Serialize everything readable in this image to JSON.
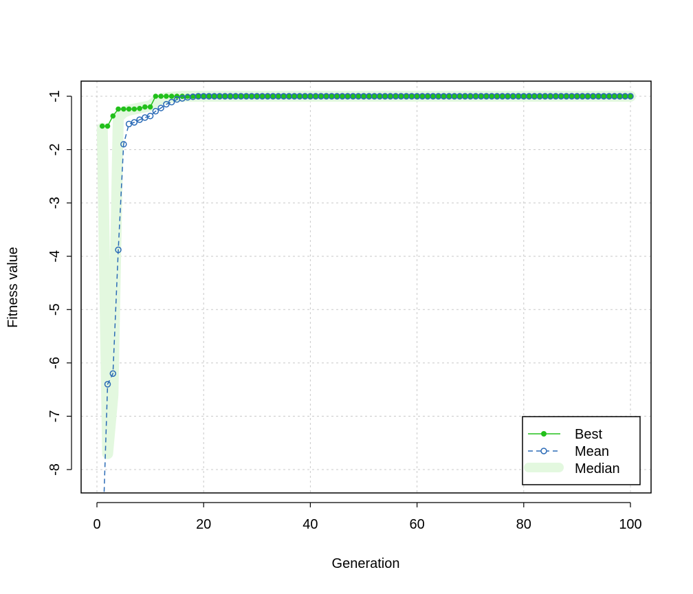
{
  "chart_data": {
    "type": "line",
    "title": "",
    "xlabel": "Generation",
    "ylabel": "Fitness value",
    "xlim": [
      0,
      100
    ],
    "ylim": [
      -8.3,
      -0.85
    ],
    "xticks": [
      0,
      20,
      40,
      60,
      80,
      100
    ],
    "yticks": [
      -1,
      -2,
      -3,
      -4,
      -5,
      -6,
      -7,
      -8
    ],
    "grid": true,
    "legend_position": "bottom-right",
    "colors": {
      "best": "#22c01b",
      "mean": "#2a6ab6",
      "median_fill": "#e3f8df"
    },
    "x": [
      1,
      2,
      3,
      4,
      5,
      6,
      7,
      8,
      9,
      10,
      11,
      12,
      13,
      14,
      15,
      16,
      17,
      18,
      19,
      20,
      21,
      22,
      23,
      24,
      25,
      26,
      27,
      28,
      29,
      30,
      31,
      32,
      33,
      34,
      35,
      36,
      37,
      38,
      39,
      40,
      41,
      42,
      43,
      44,
      45,
      46,
      47,
      48,
      49,
      50,
      51,
      52,
      53,
      54,
      55,
      56,
      57,
      58,
      59,
      60,
      61,
      62,
      63,
      64,
      65,
      66,
      67,
      68,
      69,
      70,
      71,
      72,
      73,
      74,
      75,
      76,
      77,
      78,
      79,
      80,
      81,
      82,
      83,
      84,
      85,
      86,
      87,
      88,
      89,
      90,
      91,
      92,
      93,
      94,
      95,
      96,
      97,
      98,
      99,
      100
    ],
    "series": [
      {
        "name": "Best",
        "values": [
          -1.56,
          -1.56,
          -1.37,
          -1.24,
          -1.24,
          -1.24,
          -1.24,
          -1.23,
          -1.2,
          -1.2,
          -1.0,
          -1.0,
          -1.0,
          -1.0,
          -1.0,
          -1.0,
          -1.0,
          -1.0,
          -1.0,
          -1.0,
          -1.0,
          -1.0,
          -1.0,
          -1.0,
          -1.0,
          -1.0,
          -1.0,
          -1.0,
          -1.0,
          -1.0,
          -1.0,
          -1.0,
          -1.0,
          -1.0,
          -1.0,
          -1.0,
          -1.0,
          -1.0,
          -1.0,
          -1.0,
          -1.0,
          -1.0,
          -1.0,
          -1.0,
          -1.0,
          -1.0,
          -1.0,
          -1.0,
          -1.0,
          -1.0,
          -1.0,
          -1.0,
          -1.0,
          -1.0,
          -1.0,
          -1.0,
          -1.0,
          -1.0,
          -1.0,
          -1.0,
          -1.0,
          -1.0,
          -1.0,
          -1.0,
          -1.0,
          -1.0,
          -1.0,
          -1.0,
          -1.0,
          -1.0,
          -1.0,
          -1.0,
          -1.0,
          -1.0,
          -1.0,
          -1.0,
          -1.0,
          -1.0,
          -1.0,
          -1.0,
          -1.0,
          -1.0,
          -1.0,
          -1.0,
          -1.0,
          -1.0,
          -1.0,
          -1.0,
          -1.0,
          -1.0,
          -1.0,
          -1.0,
          -1.0,
          -1.0,
          -1.0,
          -1.0,
          -1.0,
          -1.0,
          -1.0,
          -1.0
        ]
      },
      {
        "name": "Mean",
        "values": [
          -9.5,
          -6.4,
          -6.2,
          -3.88,
          -1.9,
          -1.52,
          -1.49,
          -1.44,
          -1.4,
          -1.37,
          -1.28,
          -1.22,
          -1.15,
          -1.11,
          -1.06,
          -1.04,
          -1.02,
          -1.01,
          -1.0,
          -1.0,
          -1.0,
          -1.0,
          -1.0,
          -1.0,
          -1.0,
          -1.0,
          -1.0,
          -1.0,
          -1.0,
          -1.0,
          -1.0,
          -1.0,
          -1.0,
          -1.0,
          -1.0,
          -1.0,
          -1.0,
          -1.0,
          -1.0,
          -1.0,
          -1.0,
          -1.0,
          -1.0,
          -1.0,
          -1.0,
          -1.0,
          -1.0,
          -1.0,
          -1.0,
          -1.0,
          -1.0,
          -1.0,
          -1.0,
          -1.0,
          -1.0,
          -1.0,
          -1.0,
          -1.0,
          -1.0,
          -1.0,
          -1.0,
          -1.0,
          -1.0,
          -1.0,
          -1.0,
          -1.0,
          -1.0,
          -1.0,
          -1.0,
          -1.0,
          -1.0,
          -1.0,
          -1.0,
          -1.0,
          -1.0,
          -1.0,
          -1.0,
          -1.0,
          -1.0,
          -1.0,
          -1.0,
          -1.0,
          -1.0,
          -1.0,
          -1.0,
          -1.0,
          -1.0,
          -1.0,
          -1.0,
          -1.0,
          -1.0,
          -1.0,
          -1.0,
          -1.0,
          -1.0,
          -1.0,
          -1.0,
          -1.0,
          -1.0,
          -1.0
        ]
      },
      {
        "name": "Median",
        "values": [
          -1.6,
          -7.7,
          -6.6,
          -1.4,
          -1.3,
          -1.26,
          -1.24,
          -1.22,
          -1.2,
          -1.18,
          -1.1,
          -1.05,
          -1.03,
          -1.02,
          -1.01,
          -1.0,
          -1.0,
          -1.0,
          -1.0,
          -1.0,
          -1.0,
          -1.0,
          -1.0,
          -1.0,
          -1.0,
          -1.0,
          -1.0,
          -1.0,
          -1.0,
          -1.0,
          -1.0,
          -1.0,
          -1.0,
          -1.0,
          -1.0,
          -1.0,
          -1.0,
          -1.0,
          -1.0,
          -1.0,
          -1.0,
          -1.0,
          -1.0,
          -1.0,
          -1.0,
          -1.0,
          -1.0,
          -1.0,
          -1.0,
          -1.0,
          -1.0,
          -1.0,
          -1.0,
          -1.0,
          -1.0,
          -1.0,
          -1.0,
          -1.0,
          -1.0,
          -1.0,
          -1.0,
          -1.0,
          -1.0,
          -1.0,
          -1.0,
          -1.0,
          -1.0,
          -1.0,
          -1.0,
          -1.0,
          -1.0,
          -1.0,
          -1.0,
          -1.0,
          -1.0,
          -1.0,
          -1.0,
          -1.0,
          -1.0,
          -1.0,
          -1.0,
          -1.0,
          -1.0,
          -1.0,
          -1.0,
          -1.0,
          -1.0,
          -1.0,
          -1.0,
          -1.0,
          -1.0,
          -1.0,
          -1.0,
          -1.0,
          -1.0,
          -1.0,
          -1.0,
          -1.0,
          -1.0,
          -1.0
        ]
      }
    ],
    "legend": [
      "Best",
      "Mean",
      "Median"
    ]
  }
}
